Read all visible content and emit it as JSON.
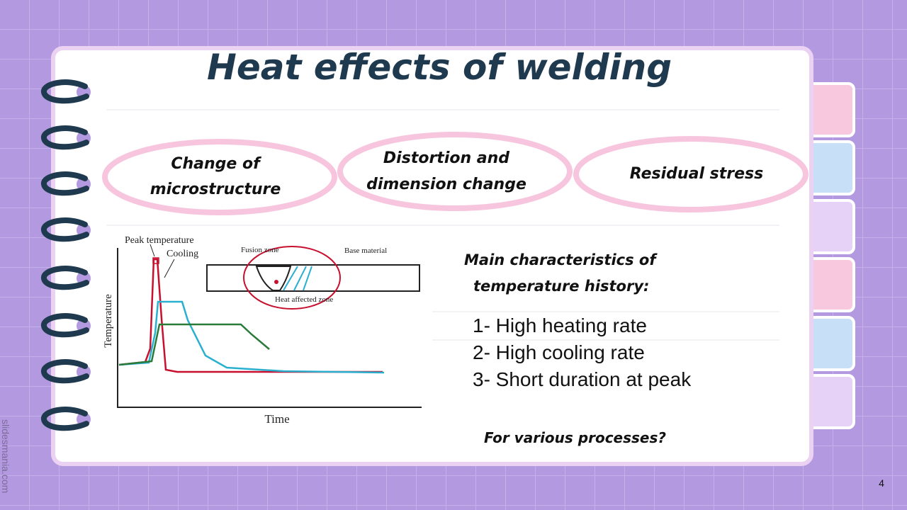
{
  "header": {
    "title": "Heat effects of welding"
  },
  "effects": [
    [
      "Change of",
      "microstructure"
    ],
    [
      "Distortion and",
      "dimension change"
    ],
    [
      "Residual stress"
    ]
  ],
  "figure": {
    "peak": "Peak temperature",
    "cooling": "Cooling",
    "fusion": "Fusion zone",
    "base": "Base material",
    "haz": "Heat affected zone",
    "y_label": "Temperature",
    "x_label": "Time"
  },
  "characteristics": {
    "heading": [
      "Main characteristics of",
      "temperature history:"
    ],
    "items": [
      "1- High heating rate",
      "2- High cooling rate",
      "3- Short duration at peak"
    ],
    "question": "For various processes?"
  },
  "footer": {
    "credit": "slidesmania.com",
    "page": 4
  }
}
